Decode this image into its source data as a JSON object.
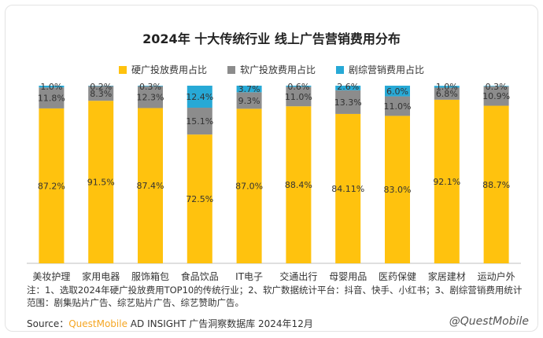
{
  "title": "2024年 十大传统行业 线上广告营销费用分布",
  "colors": {
    "hard": "#FFC20E",
    "soft": "#8C8C8C",
    "drama": "#27A9D6"
  },
  "notes": [
    "注：1、选取2024年硬广投放费用TOP10的传统行业；2、软广数据统计平台：抖音、快手、小红书；3、剧综营销费用统计",
    "范围：剧集贴片广告、综艺贴片广告、综艺赞助广告。"
  ],
  "source": {
    "prefix": "Source：",
    "brand": "QuestMobile",
    "rest": " AD INSIGHT 广告洞察数据库 2024年12月"
  },
  "watermark": "@QuestMobile",
  "chart_data": {
    "type": "bar",
    "stacked": true,
    "categories": [
      "美妆护理",
      "家用电器",
      "服饰箱包",
      "食品饮品",
      "IT电子",
      "交通出行",
      "母婴用品",
      "医药保健",
      "家居建材",
      "运动户外"
    ],
    "series": [
      {
        "name": "硬广投放费用占比",
        "color": "#FFC20E",
        "values": [
          87.2,
          91.5,
          87.4,
          72.5,
          87.0,
          88.4,
          84.1,
          83.0,
          92.1,
          88.7
        ],
        "labels": [
          "87.2%",
          "91.5%",
          "87.4%",
          "72.5%",
          "87.0%",
          "88.4%",
          "84.11%",
          "83.0%",
          "92.1%",
          "88.7%"
        ]
      },
      {
        "name": "软广投放费用占比",
        "color": "#8C8C8C",
        "values": [
          11.8,
          8.3,
          12.3,
          15.1,
          9.3,
          11.0,
          13.3,
          11.0,
          6.8,
          10.9
        ],
        "labels": [
          "11.8%",
          "8.3%",
          "12.3%",
          "15.1%",
          "9.3%",
          "11.0%",
          "13.3%",
          "11.0%",
          "6.8%",
          "10.9%"
        ]
      },
      {
        "name": "剧综营销费用占比",
        "color": "#27A9D6",
        "values": [
          1.0,
          0.2,
          0.3,
          12.4,
          3.7,
          0.6,
          2.6,
          6.0,
          1.0,
          0.3
        ],
        "labels": [
          "1.0%",
          "0.2%",
          "0.3%",
          "12.4%",
          "3.7%",
          "0.6%",
          "2.6%",
          "6.0%",
          "1.0%",
          "0.3%"
        ]
      }
    ],
    "ylim": [
      0,
      100
    ],
    "grid": false,
    "legend_position": "top"
  }
}
